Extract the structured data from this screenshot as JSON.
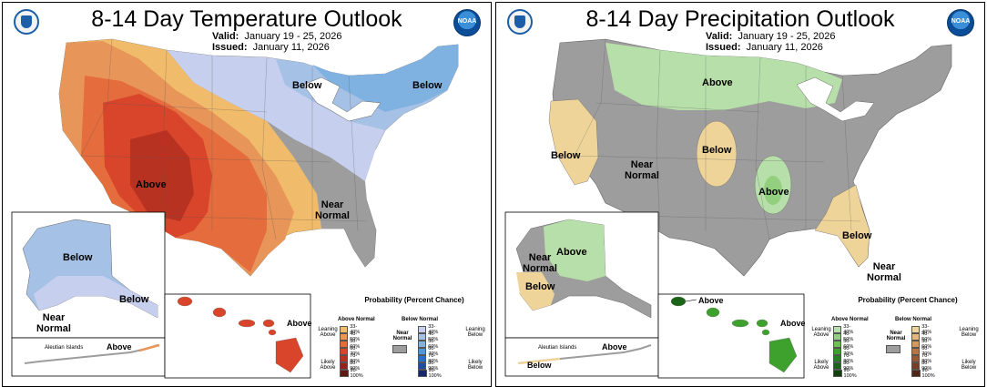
{
  "temperature": {
    "title": "8-14 Day Temperature Outlook",
    "valid_label": "Valid:",
    "valid_value": "January 19 - 25, 2026",
    "issued_label": "Issued:",
    "issued_value": "January 11, 2026",
    "regions": {
      "below_ne": "Below",
      "below_east": "Below",
      "above_sw": "Above",
      "near_normal_se": "Near Normal",
      "ak_below": "Below",
      "ak_below_se": "Below",
      "ak_near_normal": "Near Normal",
      "aleutian_label": "Aleutian Islands",
      "aleutian_above": "Above",
      "hi_above": "Above"
    },
    "legend": {
      "title": "Probability (Percent Chance)",
      "above_header": "Above Normal",
      "below_header": "Below Normal",
      "near_header": "Near Normal",
      "leaning_above": "Leaning Above",
      "likely_above": "Likely Above",
      "leaning_below": "Leaning Below",
      "likely_below": "Likely Below",
      "bins": [
        "33-40%",
        "40-50%",
        "50-60%",
        "60-70%",
        "70-80%",
        "80-90%",
        "90-100%"
      ],
      "above_colors": [
        "#f0bb6a",
        "#e8955a",
        "#e56c3c",
        "#d8452a",
        "#b83222",
        "#8e2518",
        "#601810"
      ],
      "below_colors": [
        "#c7cfee",
        "#a6c1e6",
        "#7fb1e1",
        "#4f97d8",
        "#2b6fc4",
        "#1f4ea0",
        "#17286e"
      ],
      "near_color": "#9d9d9d"
    }
  },
  "precipitation": {
    "title": "8-14 Day Precipitation Outlook",
    "valid_label": "Valid:",
    "valid_value": "January 19 - 25, 2026",
    "issued_label": "Issued:",
    "issued_value": "January 11, 2026",
    "regions": {
      "above_north": "Above",
      "below_west": "Below",
      "near_normal_center": "Near Normal",
      "below_plains": "Below",
      "above_midsouth": "Above",
      "below_se": "Below",
      "near_normal_fl": "Near Normal",
      "ak_above": "Above",
      "ak_near_normal": "Near Normal",
      "ak_below": "Below",
      "aleutian_label": "Aleutian Islands",
      "aleutian_above": "Above",
      "aleutian_below": "Below",
      "hi_above_nw": "Above",
      "hi_above": "Above"
    },
    "legend": {
      "title": "Probability (Percent Chance)",
      "above_header": "Above Normal",
      "below_header": "Below Normal",
      "near_header": "Near Normal",
      "leaning_above": "Leaning Above",
      "likely_above": "Likely Above",
      "leaning_below": "Leaning Below",
      "likely_below": "Likely Below",
      "bins": [
        "33-40%",
        "40-50%",
        "50-60%",
        "60-70%",
        "70-80%",
        "80-90%",
        "90-100%"
      ],
      "above_colors": [
        "#b7dfa9",
        "#92cf7f",
        "#6cc154",
        "#3ea12e",
        "#26821e",
        "#1b6316",
        "#10410d"
      ],
      "below_colors": [
        "#efd49a",
        "#e6b777",
        "#d89856",
        "#bb7440",
        "#9b5730",
        "#7a3f23",
        "#4d2817"
      ],
      "near_color": "#9d9d9d"
    }
  }
}
